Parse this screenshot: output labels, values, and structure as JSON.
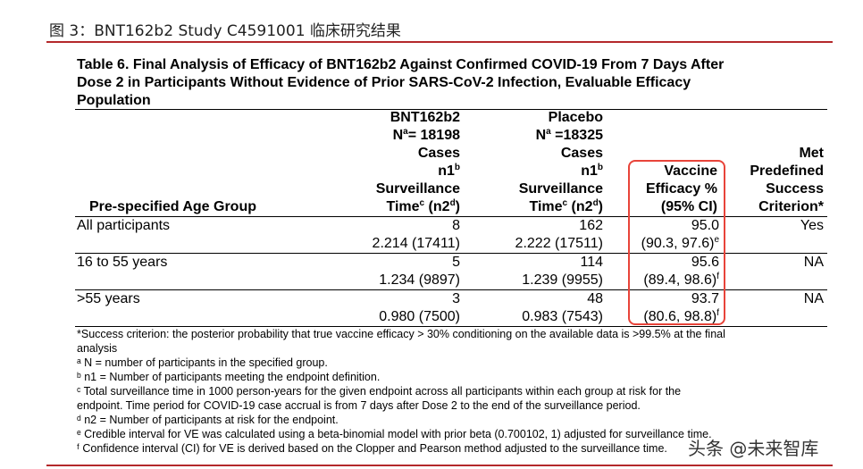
{
  "figure_caption": "图 3：BNT162b2 Study C4591001 临床研究结果",
  "table_title": [
    "Table 6. Final Analysis of Efficacy of BNT162b2 Against Confirmed COVID-19 From 7 Days After",
    "Dose 2 in Participants Without Evidence of Prior SARS-CoV-2 Infection, Evaluable Efficacy",
    "Population"
  ],
  "headers": {
    "age_group": "Pre-specified Age Group",
    "bnt": {
      "name": "BNT162b2",
      "n_prefix": "N",
      "n_sup": "a",
      "n_value": "= 18198",
      "cases": "Cases",
      "n1": "n1",
      "n1_sup": "b",
      "surv": "Surveillance",
      "time": "Time",
      "time_sup": "c",
      "n2_open": " (n2",
      "n2_sup": "d",
      "n2_close": ")"
    },
    "placebo": {
      "name": "Placebo",
      "n_prefix": "N",
      "n_sup": "a",
      "n_value": " =18325",
      "cases": "Cases",
      "n1": "n1",
      "n1_sup": "b",
      "surv": "Surveillance",
      "time": "Time",
      "time_sup": "c",
      "n2_open": " (n2",
      "n2_sup": "d",
      "n2_close": ")"
    },
    "ve": [
      "Vaccine",
      "Efficacy %",
      "(95% CI)"
    ],
    "met": [
      "Met",
      "Predefined",
      "Success",
      "Criterion*"
    ]
  },
  "rows": [
    {
      "group": "All participants",
      "bnt_cases": "8",
      "bnt_time": "2.214 (17411)",
      "pl_cases": "162",
      "pl_time": "2.222 (17511)",
      "ve": "95.0",
      "ci": "(90.3, 97.6)",
      "ci_sup": "e",
      "met": "Yes"
    },
    {
      "group": "16 to 55 years",
      "bnt_cases": "5",
      "bnt_time": "1.234 (9897)",
      "pl_cases": "114",
      "pl_time": "1.239 (9955)",
      "ve": "95.6",
      "ci": "(89.4, 98.6)",
      "ci_sup": "f",
      "met": "NA"
    },
    {
      "group": ">55 years",
      "bnt_cases": "3",
      "bnt_time": "0.980 (7500)",
      "pl_cases": "48",
      "pl_time": "0.983 (7543)",
      "ve": "93.7",
      "ci": "(80.6, 98.8)",
      "ci_sup": "f",
      "met": "NA"
    }
  ],
  "footnotes": [
    "*Success criterion: the posterior probability that true vaccine efficacy > 30% conditioning on the available data is >99.5% at the final",
    "analysis",
    "ᵃ N = number of participants in the specified group.",
    "ᵇ n1 = Number of participants meeting the endpoint definition.",
    "ᶜ Total surveillance time in 1000 person-years for the given endpoint across all participants within each group at risk for the",
    "endpoint. Time period for COVID-19 case accrual is from 7 days after Dose 2 to the end of the surveillance period.",
    "ᵈ n2 = Number of participants at risk for the endpoint.",
    "ᵉ Credible interval for VE was calculated using a beta-binomial model with prior beta (0.700102, 1) adjusted for surveillance time.",
    "ᶠ Confidence interval (CI) for VE is derived based on the Clopper and Pearson method adjusted to the surveillance time."
  ],
  "watermark": "头条 @未来智库",
  "colors": {
    "caption_rule": "#b4282b",
    "highlight_box": "#e8443a"
  }
}
